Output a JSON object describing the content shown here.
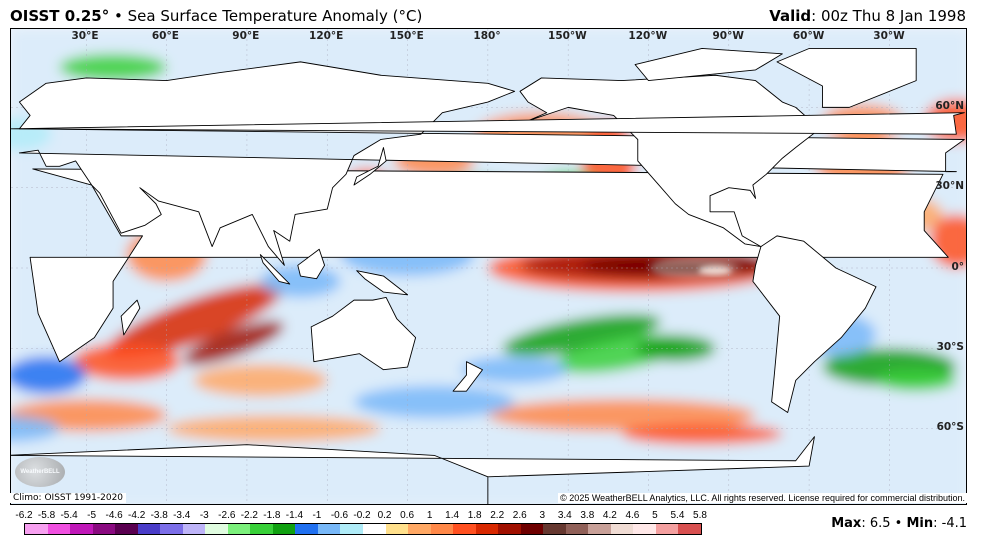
{
  "header": {
    "product": "OISST 0.25°",
    "separator": "•",
    "title": "Sea Surface Temperature Anomaly (°C)",
    "valid_label": "Valid",
    "valid_value": ": 00z Thu 8 Jan 1998"
  },
  "map": {
    "longitude_labels": [
      "30°E",
      "60°E",
      "90°E",
      "120°E",
      "150°E",
      "180°",
      "150°W",
      "120°W",
      "90°W",
      "60°W",
      "30°W"
    ],
    "latitude_labels": [
      "60°N",
      "30°N",
      "0°",
      "30°S",
      "60°S"
    ],
    "logo_text": "WeatherBELL"
  },
  "footer": {
    "climo": "Climo: OISST 1991-2020",
    "copyright": "© 2025 WeatherBELL Analytics, LLC. All rights reserved. License required for commercial distribution."
  },
  "colorbar": {
    "labels": [
      "-6.2",
      "-5.8",
      "-5.4",
      "-5",
      "-4.6",
      "-4.2",
      "-3.8",
      "-3.4",
      "-3",
      "-2.6",
      "-2.2",
      "-1.8",
      "-1.4",
      "-1",
      "-0.6",
      "-0.2",
      "0.2",
      "0.6",
      "1",
      "1.4",
      "1.8",
      "2.2",
      "2.6",
      "3",
      "3.4",
      "3.8",
      "4.2",
      "4.6",
      "5",
      "5.4",
      "5.8"
    ],
    "colors": [
      "#f7a0f0",
      "#f050e0",
      "#c018b8",
      "#8a0a80",
      "#5a0050",
      "#4a3cc8",
      "#7c6ee8",
      "#beb4f8",
      "#e0fce0",
      "#7cf07c",
      "#38d038",
      "#10a010",
      "#2070f0",
      "#78b8f8",
      "#b0ecf8",
      "#ffffff",
      "#ffe08c",
      "#ffa864",
      "#ff8848",
      "#ff5020",
      "#d82800",
      "#a01000",
      "#6e0000",
      "#663830",
      "#906058",
      "#c8a098",
      "#f0dcd4",
      "#ffe8e8",
      "#f4a0a0",
      "#d85050"
    ]
  },
  "stats": {
    "max_label": "Max",
    "max_value": ": 6.5",
    "sep": " • ",
    "min_label": "Min",
    "min_value": ": -4.1"
  }
}
